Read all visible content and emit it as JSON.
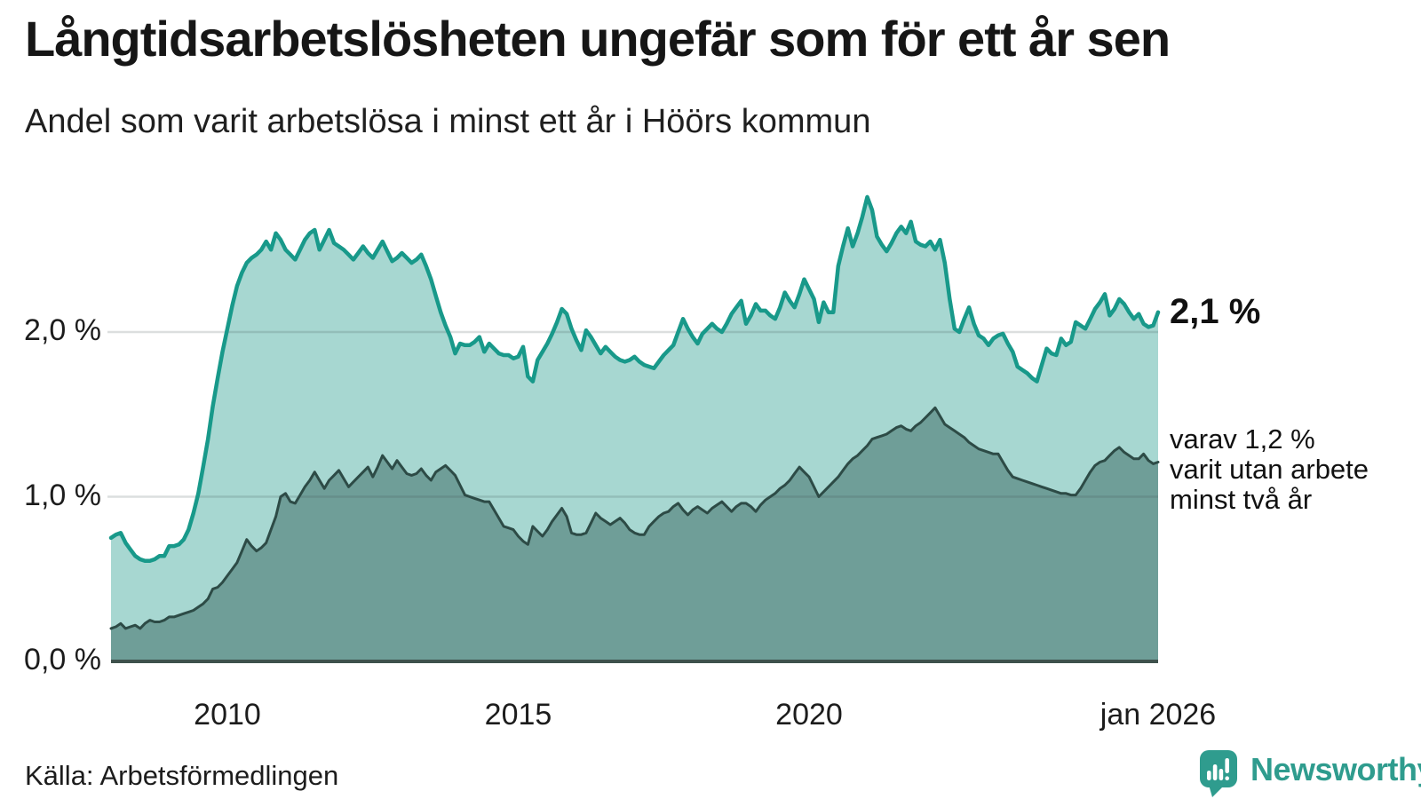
{
  "header": {
    "title": "Långtidsarbetslösheten ungefär som för ett år sen",
    "subtitle": "Andel som varit arbetslösa i minst ett år i Höörs kommun"
  },
  "y_axis": {
    "ticks": [
      {
        "label": "2,0 %",
        "value": 2.0
      },
      {
        "label": "1,0 %",
        "value": 1.0
      },
      {
        "label": "0,0 %",
        "value": 0.0
      }
    ]
  },
  "x_axis": {
    "ticks": [
      {
        "label": "2010",
        "month_index": 24
      },
      {
        "label": "2015",
        "month_index": 84
      },
      {
        "label": "2020",
        "month_index": 144
      },
      {
        "label": "jan 2026",
        "month_index": 216
      }
    ]
  },
  "annotations": {
    "latest_total": "2,1 %",
    "secondary_lines": [
      "varav 1,2 %",
      "varit utan arbete",
      "minst två år"
    ]
  },
  "footer": {
    "source": "Källa: Arbetsförmedlingen",
    "brand": "Newsworthy"
  },
  "colors": {
    "series1_stroke": "#18998a",
    "series1_fill": "#a7d7d1",
    "series2_stroke": "#2d4b46",
    "series2_fill": "#6f9e98",
    "gridline": "rgba(60,80,80,0.18)",
    "baseline": "#3e514c",
    "brand_teal": "#2f9c8e"
  },
  "chart_data": {
    "type": "area",
    "title": "Långtidsarbetslösheten ungefär som för ett år sen",
    "subtitle": "Andel som varit arbetslösa i minst ett år i Höörs kommun",
    "unit": "%",
    "frequency": "monthly",
    "x_start": "2008-01",
    "x_end": "2026-01",
    "ylim": [
      0,
      3.0
    ],
    "grid": true,
    "gridlines": [
      1.0,
      2.0
    ],
    "series": [
      {
        "name": "Andel arbetslösa minst ett år",
        "latest_label": "2,1 %",
        "values": [
          0.75,
          0.77,
          0.78,
          0.72,
          0.68,
          0.64,
          0.62,
          0.61,
          0.61,
          0.62,
          0.64,
          0.64,
          0.7,
          0.7,
          0.71,
          0.74,
          0.8,
          0.9,
          1.02,
          1.18,
          1.35,
          1.55,
          1.72,
          1.88,
          2.02,
          2.16,
          2.28,
          2.36,
          2.42,
          2.45,
          2.47,
          2.5,
          2.55,
          2.5,
          2.6,
          2.56,
          2.5,
          2.47,
          2.44,
          2.5,
          2.56,
          2.6,
          2.62,
          2.5,
          2.56,
          2.62,
          2.54,
          2.52,
          2.5,
          2.47,
          2.44,
          2.48,
          2.52,
          2.48,
          2.45,
          2.5,
          2.55,
          2.49,
          2.43,
          2.45,
          2.48,
          2.45,
          2.42,
          2.44,
          2.47,
          2.4,
          2.32,
          2.22,
          2.12,
          2.04,
          1.97,
          1.87,
          1.93,
          1.92,
          1.92,
          1.94,
          1.97,
          1.88,
          1.93,
          1.9,
          1.87,
          1.86,
          1.86,
          1.84,
          1.85,
          1.91,
          1.73,
          1.7,
          1.83,
          1.88,
          1.93,
          1.99,
          2.06,
          2.14,
          2.11,
          2.02,
          1.95,
          1.89,
          2.01,
          1.97,
          1.92,
          1.87,
          1.91,
          1.88,
          1.85,
          1.83,
          1.82,
          1.83,
          1.85,
          1.82,
          1.8,
          1.79,
          1.78,
          1.82,
          1.86,
          1.89,
          1.92,
          2.0,
          2.08,
          2.02,
          1.97,
          1.93,
          1.99,
          2.02,
          2.05,
          2.02,
          2.0,
          2.05,
          2.11,
          2.15,
          2.19,
          2.05,
          2.1,
          2.17,
          2.13,
          2.13,
          2.1,
          2.08,
          2.15,
          2.24,
          2.19,
          2.15,
          2.23,
          2.32,
          2.26,
          2.2,
          2.06,
          2.18,
          2.12,
          2.12,
          2.4,
          2.52,
          2.63,
          2.52,
          2.6,
          2.7,
          2.82,
          2.74,
          2.58,
          2.53,
          2.49,
          2.54,
          2.6,
          2.64,
          2.6,
          2.67,
          2.55,
          2.53,
          2.52,
          2.55,
          2.5,
          2.56,
          2.42,
          2.2,
          2.02,
          2.0,
          2.08,
          2.15,
          2.05,
          1.98,
          1.96,
          1.92,
          1.96,
          1.98,
          1.99,
          1.93,
          1.88,
          1.79,
          1.77,
          1.75,
          1.72,
          1.7,
          1.8,
          1.9,
          1.87,
          1.86,
          1.96,
          1.92,
          1.94,
          2.06,
          2.04,
          2.02,
          2.08,
          2.14,
          2.18,
          2.23,
          2.1,
          2.14,
          2.2,
          2.17,
          2.12,
          2.08,
          2.11,
          2.05,
          2.03,
          2.04,
          2.12
        ]
      },
      {
        "name": "varav utan arbete minst två år",
        "latest_label": "varav 1,2 %",
        "values": [
          0.2,
          0.21,
          0.23,
          0.2,
          0.21,
          0.22,
          0.2,
          0.23,
          0.25,
          0.24,
          0.24,
          0.25,
          0.27,
          0.27,
          0.28,
          0.29,
          0.3,
          0.31,
          0.33,
          0.35,
          0.38,
          0.44,
          0.45,
          0.48,
          0.52,
          0.56,
          0.6,
          0.67,
          0.74,
          0.7,
          0.67,
          0.69,
          0.72,
          0.8,
          0.88,
          1.0,
          1.02,
          0.97,
          0.96,
          1.01,
          1.06,
          1.1,
          1.15,
          1.1,
          1.05,
          1.1,
          1.13,
          1.16,
          1.11,
          1.06,
          1.09,
          1.12,
          1.15,
          1.18,
          1.12,
          1.18,
          1.25,
          1.21,
          1.17,
          1.22,
          1.18,
          1.14,
          1.13,
          1.14,
          1.17,
          1.13,
          1.1,
          1.15,
          1.17,
          1.19,
          1.16,
          1.13,
          1.07,
          1.01,
          1.0,
          0.99,
          0.98,
          0.97,
          0.97,
          0.92,
          0.87,
          0.82,
          0.81,
          0.8,
          0.76,
          0.73,
          0.71,
          0.82,
          0.79,
          0.76,
          0.8,
          0.85,
          0.89,
          0.93,
          0.88,
          0.78,
          0.77,
          0.77,
          0.78,
          0.84,
          0.9,
          0.87,
          0.85,
          0.83,
          0.85,
          0.87,
          0.84,
          0.8,
          0.78,
          0.77,
          0.77,
          0.82,
          0.85,
          0.88,
          0.9,
          0.91,
          0.94,
          0.96,
          0.92,
          0.89,
          0.92,
          0.94,
          0.92,
          0.9,
          0.93,
          0.95,
          0.97,
          0.94,
          0.91,
          0.94,
          0.96,
          0.96,
          0.94,
          0.91,
          0.95,
          0.98,
          1.0,
          1.02,
          1.05,
          1.07,
          1.1,
          1.14,
          1.18,
          1.15,
          1.12,
          1.06,
          1.0,
          1.03,
          1.06,
          1.09,
          1.12,
          1.16,
          1.2,
          1.23,
          1.25,
          1.28,
          1.31,
          1.35,
          1.36,
          1.37,
          1.38,
          1.4,
          1.42,
          1.43,
          1.41,
          1.4,
          1.43,
          1.45,
          1.48,
          1.51,
          1.54,
          1.49,
          1.44,
          1.42,
          1.4,
          1.38,
          1.36,
          1.33,
          1.31,
          1.29,
          1.28,
          1.27,
          1.26,
          1.26,
          1.21,
          1.16,
          1.12,
          1.11,
          1.1,
          1.09,
          1.08,
          1.07,
          1.06,
          1.05,
          1.04,
          1.03,
          1.02,
          1.02,
          1.01,
          1.01,
          1.05,
          1.1,
          1.15,
          1.19,
          1.21,
          1.22,
          1.25,
          1.28,
          1.3,
          1.27,
          1.25,
          1.23,
          1.23,
          1.26,
          1.22,
          1.2,
          1.21
        ]
      }
    ]
  }
}
